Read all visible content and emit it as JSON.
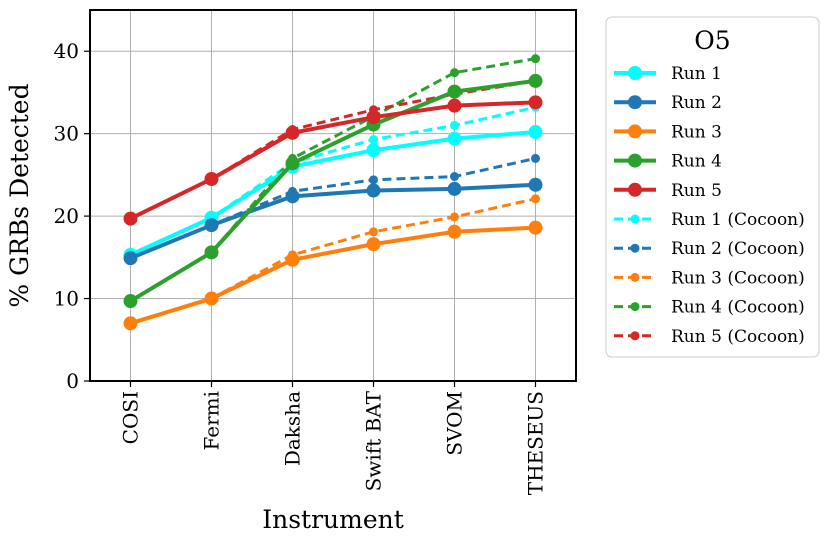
{
  "chart_data": {
    "type": "line",
    "title": "",
    "xlabel": "Instrument",
    "ylabel": "% GRBs Detected",
    "categories": [
      "COSI",
      "Fermi",
      "Daksha",
      "Swift BAT",
      "SVOM",
      "THESEUS"
    ],
    "ylim": [
      0,
      45
    ],
    "yticks": [
      0,
      10,
      20,
      30,
      40
    ],
    "grid": true,
    "legend": {
      "title": "O5",
      "placement": "outside-right"
    },
    "series": [
      {
        "name": "Run 1",
        "color": "#00ffff",
        "style": "solid",
        "values": [
          15.3,
          19.8,
          26.0,
          28.0,
          29.4,
          30.2
        ]
      },
      {
        "name": "Run 2",
        "color": "#1f77b4",
        "style": "solid",
        "values": [
          14.9,
          18.9,
          22.4,
          23.1,
          23.3,
          23.8
        ]
      },
      {
        "name": "Run 3",
        "color": "#ff7f0e",
        "style": "solid",
        "values": [
          7.0,
          10.0,
          14.7,
          16.6,
          18.1,
          18.6
        ]
      },
      {
        "name": "Run 4",
        "color": "#2ca02c",
        "style": "solid",
        "values": [
          9.7,
          15.6,
          26.4,
          31.1,
          35.1,
          36.4
        ]
      },
      {
        "name": "Run 5",
        "color": "#d62728",
        "style": "solid",
        "values": [
          19.7,
          24.5,
          30.1,
          32.0,
          33.4,
          33.8
        ]
      },
      {
        "name": "Run 1 (Cocoon)",
        "color": "#00ffff",
        "style": "dashed",
        "values": [
          15.3,
          19.8,
          26.5,
          29.3,
          31.0,
          33.2
        ]
      },
      {
        "name": "Run 2 (Cocoon)",
        "color": "#1f77b4",
        "style": "dashed",
        "values": [
          14.9,
          18.9,
          23.0,
          24.4,
          24.8,
          27.0
        ]
      },
      {
        "name": "Run 3 (Cocoon)",
        "color": "#ff7f0e",
        "style": "dashed",
        "values": [
          7.0,
          10.0,
          15.3,
          18.1,
          19.9,
          22.1
        ]
      },
      {
        "name": "Run 4 (Cocoon)",
        "color": "#2ca02c",
        "style": "dashed",
        "values": [
          9.7,
          15.6,
          27.0,
          32.1,
          37.4,
          39.1
        ]
      },
      {
        "name": "Run 5 (Cocoon)",
        "color": "#d62728",
        "style": "dashed",
        "values": [
          19.7,
          24.5,
          30.5,
          32.9,
          34.8,
          36.4
        ]
      }
    ]
  }
}
